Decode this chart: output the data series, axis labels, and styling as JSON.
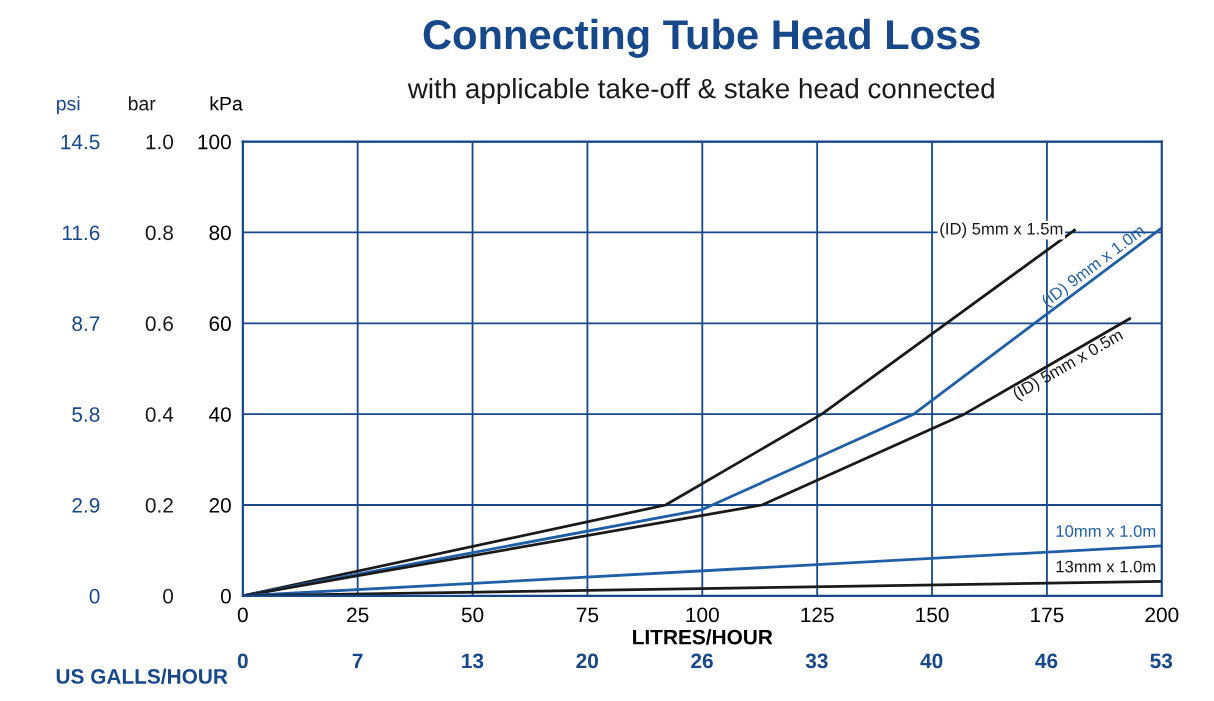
{
  "chart_data": {
    "type": "line",
    "title": "Connecting Tube Head Loss",
    "subtitle": "with applicable take-off & stake head connected",
    "xlabel": "LITRES/HOUR",
    "ylabel": "kPa",
    "y2label": "bar",
    "y3label": "psi",
    "x2label": "US GALLS/HOUR",
    "xlim": [
      0,
      200
    ],
    "xticks": [
      0,
      25,
      50,
      75,
      100,
      125,
      150,
      175,
      200
    ],
    "ylim": [
      0,
      100
    ],
    "yticks": [
      0,
      20,
      40,
      60,
      80,
      100
    ],
    "y2lim": [
      0,
      1.0
    ],
    "y2ticks": [
      0,
      0.2,
      0.4,
      0.6,
      0.8,
      {
        "value": 1.0,
        "label": "1.0"
      }
    ],
    "y3lim": [
      0,
      14.5
    ],
    "y3ticks": [
      0,
      2.9,
      5.8,
      8.7,
      11.6,
      14.5
    ],
    "x2lim": [
      0,
      52.83
    ],
    "x2ticks": [
      0,
      {
        "value": 6.6,
        "label": "7"
      },
      {
        "value": 13.2,
        "label": "13"
      },
      {
        "value": 19.8,
        "label": "20"
      },
      {
        "value": 26.4,
        "label": "26"
      },
      {
        "value": 33.0,
        "label": "33"
      },
      {
        "value": 39.6,
        "label": "40"
      },
      {
        "value": 46.2,
        "label": "46"
      },
      {
        "value": 52.8,
        "label": "53"
      }
    ],
    "grid": true,
    "marker": "none",
    "line_style": "solid",
    "series": [
      {
        "name": "(ID) 5mm x 1.5m",
        "color": "#1a1a1a",
        "x": [
          0,
          92,
          126,
          181
        ],
        "values": [
          0,
          20,
          40,
          80.5
        ]
      },
      {
        "name": "(ID) 9mm x 1.0m",
        "color": "#1f5fa8",
        "x": [
          0,
          100,
          146,
          200
        ],
        "values": [
          0,
          19,
          40,
          81
        ]
      },
      {
        "name": "(ID) 5mm x 0.5m",
        "color": "#1a1a1a",
        "x": [
          0,
          113,
          157,
          193
        ],
        "values": [
          0,
          20,
          40,
          61
        ]
      },
      {
        "name": "10mm x 1.0m",
        "color": "#1f5fa8",
        "x": [
          0,
          200
        ],
        "values": [
          0,
          11
        ]
      },
      {
        "name": "13mm x 1.0m",
        "color": "#1a1a1a",
        "x": [
          0,
          200
        ],
        "values": [
          0,
          3.2
        ]
      }
    ]
  }
}
